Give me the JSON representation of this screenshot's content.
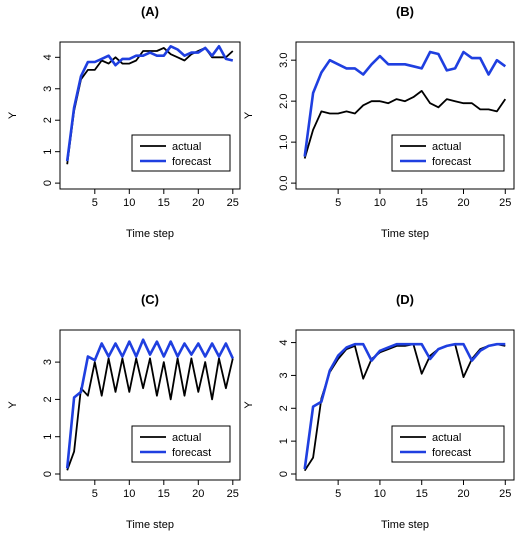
{
  "chart_data": [
    {
      "type": "line",
      "title": "(A)",
      "xlabel": "Time step",
      "ylabel": "Y",
      "xlim": [
        1,
        25
      ],
      "ylim": [
        0,
        4.3
      ],
      "xticks": [
        "5",
        "10",
        "15",
        "20",
        "25"
      ],
      "yticks": [
        "0",
        "1",
        "2",
        "3",
        "4"
      ],
      "x": [
        1,
        2,
        3,
        4,
        5,
        6,
        7,
        8,
        9,
        10,
        11,
        12,
        13,
        14,
        15,
        16,
        17,
        18,
        19,
        20,
        21,
        22,
        23,
        24,
        25
      ],
      "series": [
        {
          "name": "actual",
          "color": "#000000",
          "values": [
            0.6,
            2.3,
            3.3,
            3.6,
            3.6,
            3.9,
            3.8,
            4.0,
            3.8,
            3.8,
            3.9,
            4.2,
            4.2,
            4.2,
            4.3,
            4.1,
            4.0,
            3.9,
            4.1,
            4.2,
            4.3,
            4.0,
            4.0,
            4.0,
            4.2
          ]
        },
        {
          "name": "forecast",
          "color": "#1f3fe0",
          "values": [
            0.7,
            2.4,
            3.4,
            3.85,
            3.85,
            3.95,
            4.05,
            3.75,
            3.95,
            3.95,
            4.05,
            4.05,
            4.15,
            4.05,
            4.05,
            4.35,
            4.25,
            4.05,
            4.15,
            4.15,
            4.3,
            4.05,
            4.35,
            3.95,
            3.9
          ]
        }
      ],
      "legend": "bottom-right"
    },
    {
      "type": "line",
      "title": "(B)",
      "xlabel": "Time step",
      "ylabel": "Y",
      "xlim": [
        1,
        25
      ],
      "ylim": [
        0,
        3.3
      ],
      "xticks": [
        "5",
        "10",
        "15",
        "20",
        "25"
      ],
      "yticks": [
        "0.0",
        "1.0",
        "2.0",
        "3.0"
      ],
      "x": [
        1,
        2,
        3,
        4,
        5,
        6,
        7,
        8,
        9,
        10,
        11,
        12,
        13,
        14,
        15,
        16,
        17,
        18,
        19,
        20,
        21,
        22,
        23,
        24,
        25
      ],
      "series": [
        {
          "name": "actual",
          "color": "#000000",
          "values": [
            0.6,
            1.3,
            1.75,
            1.7,
            1.7,
            1.75,
            1.7,
            1.9,
            2.0,
            2.0,
            1.95,
            2.05,
            2.0,
            2.1,
            2.25,
            1.95,
            1.85,
            2.05,
            2.0,
            1.95,
            1.95,
            1.8,
            1.8,
            1.75,
            2.05
          ]
        },
        {
          "name": "forecast",
          "color": "#1f3fe0",
          "values": [
            0.65,
            2.2,
            2.7,
            3.0,
            2.9,
            2.8,
            2.8,
            2.65,
            2.9,
            3.1,
            2.9,
            2.9,
            2.9,
            2.85,
            2.8,
            3.2,
            3.15,
            2.75,
            2.8,
            3.2,
            3.05,
            3.05,
            2.65,
            3.0,
            2.85
          ]
        }
      ],
      "legend": "bottom-right"
    },
    {
      "type": "line",
      "title": "(C)",
      "xlabel": "Time step",
      "ylabel": "Y",
      "xlim": [
        1,
        25
      ],
      "ylim": [
        0,
        3.7
      ],
      "xticks": [
        "5",
        "10",
        "15",
        "20",
        "25"
      ],
      "yticks": [
        "0",
        "1",
        "2",
        "3"
      ],
      "x": [
        1,
        2,
        3,
        4,
        5,
        6,
        7,
        8,
        9,
        10,
        11,
        12,
        13,
        14,
        15,
        16,
        17,
        18,
        19,
        20,
        21,
        22,
        23,
        24,
        25
      ],
      "series": [
        {
          "name": "actual",
          "color": "#000000",
          "values": [
            0.1,
            0.6,
            2.3,
            2.1,
            3.0,
            2.1,
            3.1,
            2.2,
            3.1,
            2.2,
            3.1,
            2.3,
            3.1,
            2.1,
            3.0,
            2.0,
            3.1,
            2.1,
            3.1,
            2.2,
            3.0,
            2.0,
            3.1,
            2.3,
            3.1
          ]
        },
        {
          "name": "forecast",
          "color": "#1f3fe0",
          "values": [
            0.15,
            2.05,
            2.2,
            3.15,
            3.05,
            3.5,
            3.15,
            3.5,
            3.15,
            3.55,
            3.15,
            3.6,
            3.2,
            3.55,
            3.15,
            3.55,
            3.15,
            3.5,
            3.2,
            3.5,
            3.15,
            3.5,
            3.15,
            3.5,
            3.1
          ]
        }
      ],
      "legend": "bottom-right"
    },
    {
      "type": "line",
      "title": "(D)",
      "xlabel": "Time step",
      "ylabel": "Y",
      "xlim": [
        1,
        25
      ],
      "ylim": [
        0,
        4.2
      ],
      "xticks": [
        "5",
        "10",
        "15",
        "20",
        "25"
      ],
      "yticks": [
        "0",
        "1",
        "2",
        "3",
        "4"
      ],
      "x": [
        1,
        2,
        3,
        4,
        5,
        6,
        7,
        8,
        9,
        10,
        11,
        12,
        13,
        14,
        15,
        16,
        17,
        18,
        19,
        20,
        21,
        22,
        23,
        24,
        25
      ],
      "series": [
        {
          "name": "actual",
          "color": "#000000",
          "values": [
            0.1,
            0.5,
            2.3,
            3.1,
            3.5,
            3.8,
            3.9,
            2.9,
            3.5,
            3.7,
            3.8,
            3.9,
            3.9,
            3.95,
            3.05,
            3.6,
            3.8,
            3.9,
            3.95,
            2.95,
            3.5,
            3.8,
            3.9,
            3.95,
            3.9
          ]
        },
        {
          "name": "forecast",
          "color": "#1f3fe0",
          "values": [
            0.15,
            2.05,
            2.2,
            3.15,
            3.6,
            3.85,
            3.95,
            3.95,
            3.45,
            3.75,
            3.85,
            3.95,
            3.95,
            3.95,
            3.95,
            3.5,
            3.8,
            3.9,
            3.95,
            3.95,
            3.45,
            3.75,
            3.9,
            3.95,
            3.95
          ]
        }
      ],
      "legend": "bottom-right"
    }
  ]
}
